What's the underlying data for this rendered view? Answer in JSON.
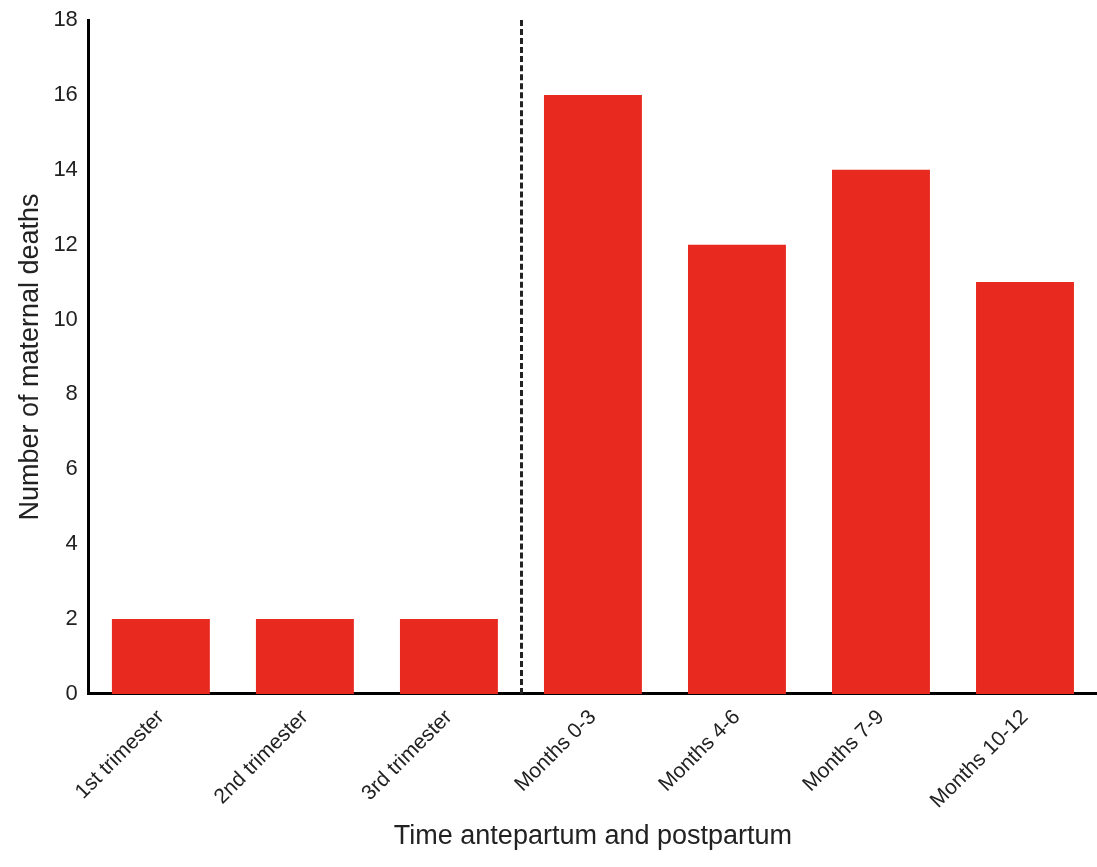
{
  "chart_data": {
    "type": "bar",
    "xlabel": "Time antepartum and postpartum",
    "ylabel": "Number of maternal deaths",
    "categories": [
      "1st trimester",
      "2nd trimester",
      "3rd trimester",
      "Months 0-3",
      "Months 4-6",
      "Months 7-9",
      "Months 10-12"
    ],
    "values": [
      2,
      2,
      2,
      16,
      12,
      14,
      11
    ],
    "color": "#e8291f",
    "ylim": [
      0,
      18
    ],
    "yticks": [
      0,
      2,
      4,
      6,
      8,
      10,
      12,
      14,
      16,
      18
    ],
    "grid": false,
    "legend": false
  }
}
